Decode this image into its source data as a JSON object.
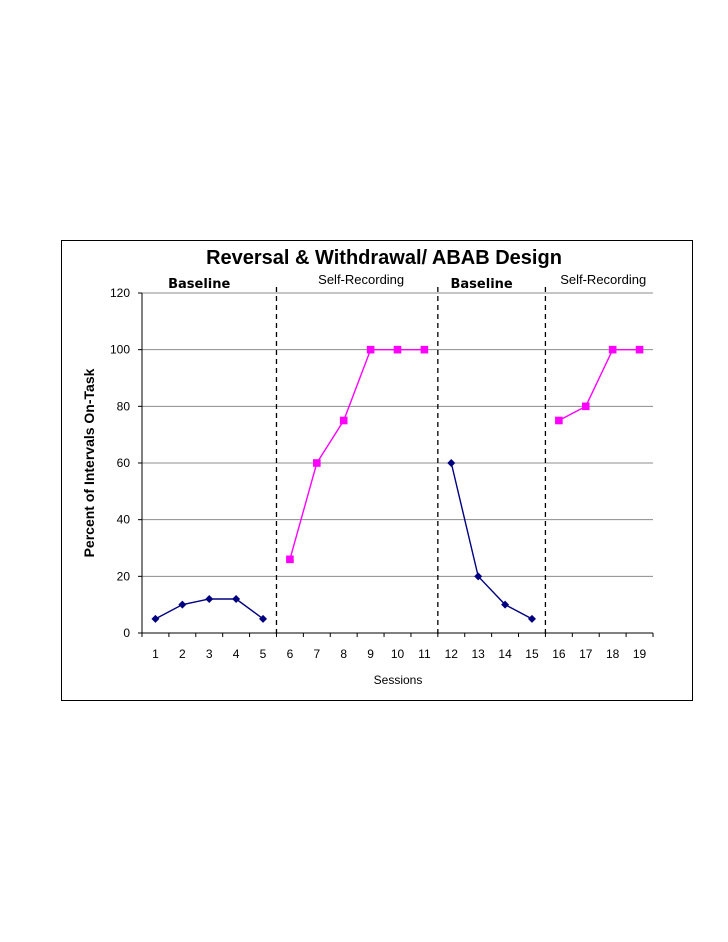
{
  "chart_data": {
    "type": "line",
    "title": "Reversal & Withdrawal/ ABAB Design",
    "xlabel": "Sessions",
    "ylabel": "Percent of Intervals On-Task",
    "ylim": [
      0,
      120
    ],
    "yticks": [
      0,
      20,
      40,
      60,
      80,
      100,
      120
    ],
    "categories": [
      "1",
      "2",
      "3",
      "4",
      "5",
      "6",
      "7",
      "8",
      "9",
      "10",
      "11",
      "12",
      "13",
      "14",
      "15",
      "16",
      "17",
      "18",
      "19"
    ],
    "grid": true,
    "phases": [
      {
        "label": "Baseline",
        "sessions": [
          1,
          5
        ],
        "style": "handwritten"
      },
      {
        "label": "Self-Recording",
        "sessions": [
          6,
          11
        ],
        "style": "plain"
      },
      {
        "label": "Baseline",
        "sessions": [
          12,
          15
        ],
        "style": "handwritten"
      },
      {
        "label": "Self-Recording",
        "sessions": [
          16,
          19
        ],
        "style": "plain"
      }
    ],
    "phase_change_lines_after_session": [
      5,
      11,
      15
    ],
    "series": [
      {
        "segment": "baseline-1",
        "color": "#000080",
        "marker": "diamond",
        "x": [
          1,
          2,
          3,
          4,
          5
        ],
        "values": [
          5,
          10,
          12,
          12,
          5
        ]
      },
      {
        "segment": "intervention-1",
        "color": "#ff00ff",
        "marker": "square",
        "x": [
          6,
          7,
          8,
          9,
          10,
          11
        ],
        "values": [
          26,
          60,
          75,
          100,
          100,
          100
        ]
      },
      {
        "segment": "baseline-2",
        "color": "#000080",
        "marker": "diamond",
        "x": [
          12,
          13,
          14,
          15
        ],
        "values": [
          60,
          20,
          10,
          5
        ]
      },
      {
        "segment": "intervention-2",
        "color": "#ff00ff",
        "marker": "square",
        "x": [
          16,
          17,
          18,
          19
        ],
        "values": [
          75,
          80,
          100,
          100
        ]
      }
    ]
  }
}
